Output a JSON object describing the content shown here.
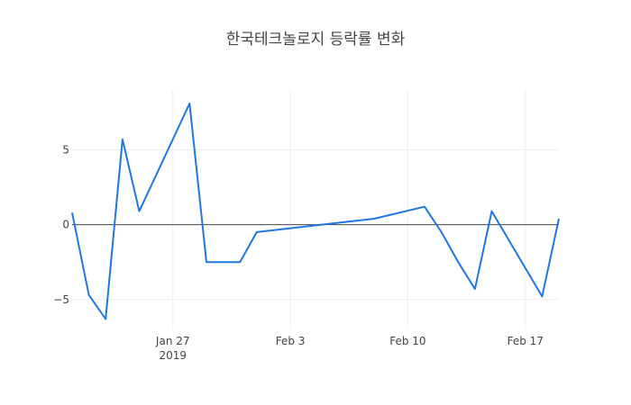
{
  "chart_data": {
    "type": "line",
    "title": "한국테크놀로지 등락률 변화",
    "xlabel": "",
    "ylabel": "",
    "x_ticks": [
      {
        "date": "2019-01-27",
        "label": "Jan 27",
        "sublabel": "2019"
      },
      {
        "date": "2019-02-03",
        "label": "Feb 3"
      },
      {
        "date": "2019-02-10",
        "label": "Feb 10"
      },
      {
        "date": "2019-02-17",
        "label": "Feb 17"
      }
    ],
    "y_ticks": [
      {
        "value": -5,
        "label": "−5"
      },
      {
        "value": 0,
        "label": "0"
      },
      {
        "value": 5,
        "label": "5"
      }
    ],
    "xlim": [
      "2019-01-21",
      "2019-02-19"
    ],
    "ylim": [
      -7,
      9
    ],
    "grid": true,
    "series": [
      {
        "color": "#1f77e0",
        "points": [
          {
            "x": "2019-01-21",
            "y": 0.8
          },
          {
            "x": "2019-01-22",
            "y": -4.7
          },
          {
            "x": "2019-01-23",
            "y": -6.3
          },
          {
            "x": "2019-01-24",
            "y": 5.7
          },
          {
            "x": "2019-01-25",
            "y": 0.9
          },
          {
            "x": "2019-01-28",
            "y": 8.1
          },
          {
            "x": "2019-01-29",
            "y": -2.5
          },
          {
            "x": "2019-01-31",
            "y": -2.5
          },
          {
            "x": "2019-02-01",
            "y": -0.5
          },
          {
            "x": "2019-02-08",
            "y": 0.4
          },
          {
            "x": "2019-02-11",
            "y": 1.2
          },
          {
            "x": "2019-02-12",
            "y": -0.5
          },
          {
            "x": "2019-02-13",
            "y": -2.5
          },
          {
            "x": "2019-02-14",
            "y": -4.3
          },
          {
            "x": "2019-02-15",
            "y": 0.9
          },
          {
            "x": "2019-02-18",
            "y": -4.8
          },
          {
            "x": "2019-02-19",
            "y": 0.4
          }
        ]
      }
    ]
  }
}
